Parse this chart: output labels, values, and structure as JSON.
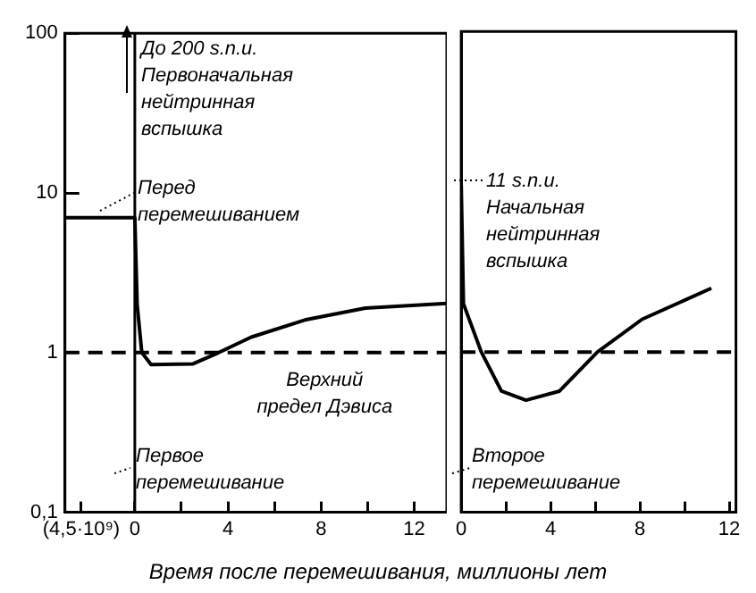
{
  "chart_data": [
    {
      "type": "line",
      "xlabel": "Время после перемешивания, миллионы лет",
      "series": [
        {
          "color": "#000000",
          "x": [
            -3,
            0,
            0.1,
            0.3,
            0.7,
            2.5,
            3.6,
            5,
            7.3,
            9.9,
            13.4
          ],
          "values": [
            7,
            7,
            2,
            1,
            0.84,
            0.85,
            1,
            1.25,
            1.6,
            1.9,
            2.03
          ]
        }
      ],
      "xlim": [
        -3,
        13.4
      ],
      "xticks": [
        {
          "value": -2.3,
          "label": "(4,5·10⁹)"
        },
        0,
        {
          "value": 2,
          "label": null
        },
        4,
        {
          "value": 6,
          "label": null
        },
        8,
        {
          "value": 10,
          "label": null
        },
        12
      ],
      "ylim": [
        0.1,
        100
      ],
      "yticks": [
        {
          "value": 0.1,
          "label": "0,1"
        },
        1,
        10,
        100
      ],
      "log": true,
      "grid": false,
      "legend": false,
      "marker": "none",
      "line_style": "solid",
      "ref_lines": [
        {
          "axis": "x",
          "value": 0,
          "color": "#000000",
          "line_style": "solid"
        },
        {
          "axis": "y",
          "value": 1,
          "label": "Верхний предел Дэвиса",
          "color": "#000000",
          "line_style": "dashed"
        }
      ],
      "annotations": [
        "До 200 s.n.u. Первоначальная нейтринная вспышка",
        "Перед перемешиванием",
        "Первое перемешивание"
      ]
    },
    {
      "type": "line",
      "series": [
        {
          "color": "#000000",
          "x": [
            0,
            0.1,
            0.9,
            1.8,
            2.9,
            4.4,
            6.1,
            8.1,
            11.2
          ],
          "values": [
            11,
            2.0,
            1.0,
            0.57,
            0.5,
            0.57,
            1.0,
            1.6,
            2.5
          ]
        }
      ],
      "xlim": [
        0,
        12.3
      ],
      "xticks": [
        0,
        {
          "value": 2,
          "label": null
        },
        4,
        {
          "value": 6,
          "label": null
        },
        8,
        {
          "value": 10,
          "label": null
        },
        12
      ],
      "ylim": [
        0.1,
        100
      ],
      "yticks": [
        0.1,
        1,
        10,
        100
      ],
      "tick_labels": "x",
      "log": true,
      "grid": false,
      "legend": false,
      "marker": "none",
      "line_style": "solid",
      "ref_lines": [
        {
          "axis": "y",
          "value": 1,
          "color": "#000000",
          "line_style": "dashed"
        }
      ],
      "annotations": [
        "11 s.n.u. Начальная нейтринная вспышка",
        "Второе перемешивание"
      ]
    }
  ]
}
